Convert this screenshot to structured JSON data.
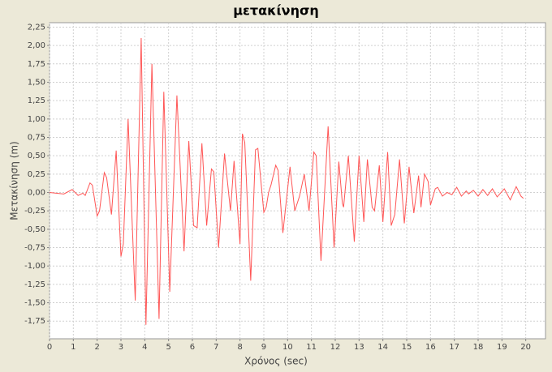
{
  "chart_data": {
    "type": "line",
    "title": "μετακίνηση",
    "x_label": "Χρόνος (sec)",
    "y_label": "Μετακίνηση (m)",
    "x": [
      0,
      0.6,
      0.95,
      1.2,
      1.4,
      1.5,
      1.7,
      1.8,
      2.0,
      2.1,
      2.3,
      2.4,
      2.6,
      2.8,
      3.0,
      3.1,
      3.3,
      3.6,
      3.85,
      4.05,
      4.3,
      4.6,
      4.8,
      5.05,
      5.35,
      5.65,
      5.85,
      6.05,
      6.2,
      6.4,
      6.6,
      6.8,
      6.9,
      7.1,
      7.35,
      7.6,
      7.75,
      8.0,
      8.1,
      8.2,
      8.45,
      8.65,
      8.75,
      9.0,
      9.1,
      9.2,
      9.3,
      9.5,
      9.6,
      9.8,
      10.1,
      10.3,
      10.5,
      10.7,
      10.9,
      11.1,
      11.2,
      11.4,
      11.7,
      11.95,
      12.15,
      12.3,
      12.35,
      12.55,
      12.8,
      13.0,
      13.2,
      13.35,
      13.55,
      13.65,
      13.85,
      14.0,
      14.2,
      14.35,
      14.5,
      14.7,
      14.9,
      15.1,
      15.3,
      15.5,
      15.6,
      15.75,
      15.9,
      16.0,
      16.2,
      16.3,
      16.5,
      16.7,
      16.9,
      17.1,
      17.3,
      17.5,
      17.6,
      17.8,
      18.0,
      18.2,
      18.4,
      18.6,
      18.8,
      19.1,
      19.35,
      19.6,
      19.8,
      19.9
    ],
    "values": [
      0,
      -0.02,
      0.04,
      -0.04,
      -0.01,
      -0.04,
      0.13,
      0.1,
      -0.32,
      -0.25,
      0.27,
      0.2,
      -0.3,
      0.57,
      -0.87,
      -0.7,
      1.0,
      -1.47,
      2.1,
      -1.8,
      1.75,
      -1.72,
      1.37,
      -1.35,
      1.32,
      -0.8,
      0.7,
      -0.45,
      -0.48,
      0.67,
      -0.45,
      0.32,
      0.28,
      -0.75,
      0.53,
      -0.25,
      0.43,
      -0.7,
      0.8,
      0.68,
      -1.2,
      0.58,
      0.6,
      -0.27,
      -0.2,
      0.0,
      0.1,
      0.37,
      0.3,
      -0.55,
      0.35,
      -0.25,
      -0.05,
      0.25,
      -0.25,
      0.55,
      0.5,
      -0.93,
      0.9,
      -0.75,
      0.42,
      -0.15,
      -0.2,
      0.5,
      -0.67,
      0.5,
      -0.4,
      0.45,
      -0.2,
      -0.25,
      0.37,
      -0.4,
      0.55,
      -0.45,
      -0.3,
      0.45,
      -0.42,
      0.35,
      -0.28,
      0.23,
      -0.2,
      0.25,
      0.15,
      -0.17,
      0.05,
      0.07,
      -0.05,
      0.0,
      -0.03,
      0.07,
      -0.05,
      0.02,
      -0.02,
      0.03,
      -0.05,
      0.04,
      -0.04,
      0.05,
      -0.06,
      0.05,
      -0.1,
      0.08,
      -0.05,
      -0.08
    ],
    "color": "#ff5555",
    "xlim": [
      0,
      20.83
    ],
    "ylim": [
      -1.99,
      2.31
    ],
    "xticks": [
      0,
      1,
      2,
      3,
      4,
      5,
      6,
      7,
      8,
      9,
      10,
      11,
      12,
      13,
      14,
      15,
      16,
      17,
      18,
      19,
      20
    ],
    "yticks": [
      {
        "value": 2.25,
        "label": "2,25"
      },
      {
        "value": 2,
        "label": "2,00"
      },
      {
        "value": 1.75,
        "label": "1,75"
      },
      {
        "value": 1.5,
        "label": "1,50"
      },
      {
        "value": 1.25,
        "label": "1,25"
      },
      {
        "value": 1,
        "label": "1,00"
      },
      {
        "value": 0.75,
        "label": "0,75"
      },
      {
        "value": 0.5,
        "label": "0,50"
      },
      {
        "value": 0.25,
        "label": "0,25"
      },
      {
        "value": 0,
        "label": "0,00"
      },
      {
        "value": -0.25,
        "label": "-0,25"
      },
      {
        "value": -0.5,
        "label": "-0,50"
      },
      {
        "value": -0.75,
        "label": "-0,75"
      },
      {
        "value": -1,
        "label": "-1,00"
      },
      {
        "value": -1.25,
        "label": "-1,25"
      },
      {
        "value": -1.5,
        "label": "-1,50"
      },
      {
        "value": -1.75,
        "label": "-1,75"
      }
    ],
    "grid": true
  }
}
